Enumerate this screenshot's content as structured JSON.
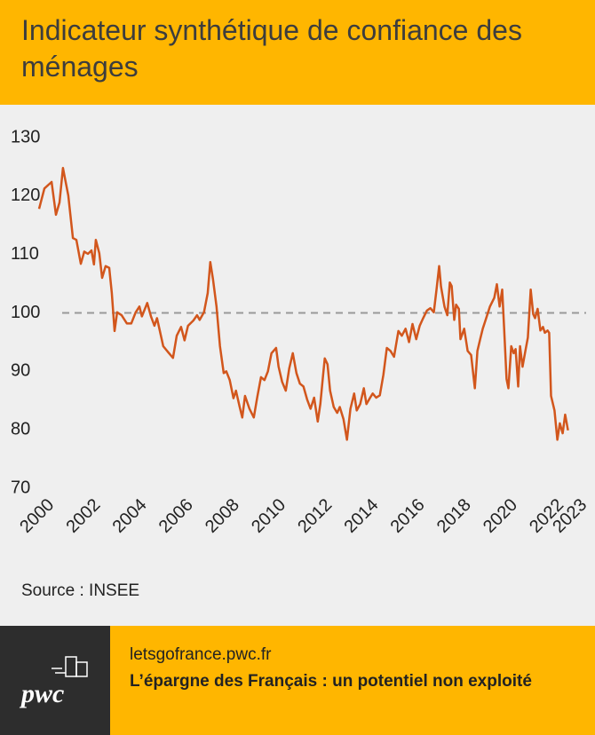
{
  "header": {
    "title": "Indicateur synthétique de confiance des ménages"
  },
  "chart_data": {
    "type": "line",
    "x": [
      2000.0,
      2000.23,
      2000.54,
      2000.73,
      2000.88,
      2001.03,
      2001.26,
      2001.46,
      2001.61,
      2001.8,
      2001.95,
      2002.11,
      2002.26,
      2002.37,
      2002.45,
      2002.6,
      2002.72,
      2002.87,
      2003.03,
      2003.14,
      2003.26,
      2003.37,
      2003.56,
      2003.79,
      2003.98,
      2004.17,
      2004.33,
      2004.44,
      2004.67,
      2004.83,
      2004.98,
      2005.09,
      2005.21,
      2005.36,
      2005.59,
      2005.78,
      2005.94,
      2006.13,
      2006.28,
      2006.43,
      2006.66,
      2006.82,
      2006.93,
      2007.12,
      2007.28,
      2007.39,
      2007.51,
      2007.66,
      2007.81,
      2007.97,
      2008.08,
      2008.23,
      2008.39,
      2008.5,
      2008.66,
      2008.77,
      2008.89,
      2009.08,
      2009.27,
      2009.42,
      2009.58,
      2009.73,
      2009.88,
      2010.03,
      2010.23,
      2010.34,
      2010.49,
      2010.65,
      2010.8,
      2010.95,
      2011.11,
      2011.26,
      2011.41,
      2011.57,
      2011.72,
      2011.87,
      2012.03,
      2012.14,
      2012.26,
      2012.33,
      2012.45,
      2012.56,
      2012.72,
      2012.87,
      2012.98,
      2013.14,
      2013.29,
      2013.44,
      2013.6,
      2013.71,
      2013.86,
      2014.02,
      2014.13,
      2014.29,
      2014.4,
      2014.55,
      2014.71,
      2014.86,
      2015.01,
      2015.17,
      2015.32,
      2015.51,
      2015.66,
      2015.82,
      2015.97,
      2016.12,
      2016.28,
      2016.43,
      2016.58,
      2016.74,
      2016.89,
      2017.04,
      2017.16,
      2017.27,
      2017.35,
      2017.5,
      2017.62,
      2017.73,
      2017.81,
      2017.92,
      2018.0,
      2018.12,
      2018.19,
      2018.35,
      2018.5,
      2018.65,
      2018.81,
      2018.92,
      2019.04,
      2019.15,
      2019.3,
      2019.46,
      2019.65,
      2019.76,
      2019.88,
      2019.99,
      2020.07,
      2020.18,
      2020.26,
      2020.38,
      2020.49,
      2020.57,
      2020.68,
      2020.76,
      2020.87,
      2020.99,
      2021.1,
      2021.22,
      2021.33,
      2021.41,
      2021.52,
      2021.64,
      2021.75,
      2021.83,
      2021.95,
      2022.02,
      2022.1,
      2022.25,
      2022.37,
      2022.48,
      2022.6,
      2022.71,
      2022.83
    ],
    "series": [
      {
        "color": "#d2561c",
        "values": [
          117.8,
          121.3,
          122.4,
          116.8,
          118.9,
          124.8,
          120.1,
          112.8,
          112.5,
          108.4,
          110.5,
          110.1,
          110.7,
          108.3,
          112.5,
          110.2,
          106.0,
          108.0,
          107.7,
          103.4,
          96.9,
          100.1,
          99.6,
          98.2,
          98.2,
          100.1,
          101.1,
          99.4,
          101.7,
          99.4,
          97.8,
          99.1,
          97.0,
          94.3,
          93.2,
          92.3,
          96.1,
          97.6,
          95.3,
          97.8,
          98.7,
          99.6,
          98.8,
          100.1,
          103.4,
          108.7,
          105.7,
          101.1,
          94.3,
          89.7,
          90.0,
          88.5,
          85.4,
          86.7,
          83.9,
          82.1,
          85.8,
          83.6,
          82.1,
          85.6,
          89.0,
          88.5,
          90.0,
          93.1,
          94.0,
          90.8,
          88.2,
          86.7,
          90.5,
          93.1,
          89.7,
          87.9,
          87.4,
          85.2,
          83.6,
          85.5,
          81.4,
          84.4,
          89.3,
          92.2,
          91.2,
          86.7,
          83.9,
          82.9,
          83.9,
          81.8,
          78.3,
          83.6,
          86.2,
          83.3,
          84.4,
          87.1,
          84.4,
          85.5,
          86.2,
          85.5,
          85.9,
          89.4,
          94.0,
          93.5,
          92.5,
          96.9,
          96.1,
          97.3,
          95.0,
          98.1,
          95.5,
          97.8,
          99.1,
          100.4,
          100.8,
          100.1,
          104.2,
          108.0,
          104.5,
          101.1,
          99.6,
          105.2,
          104.6,
          98.8,
          101.4,
          100.7,
          95.5,
          97.3,
          93.5,
          92.8,
          87.1,
          93.5,
          95.5,
          97.3,
          99.1,
          101.1,
          102.6,
          104.9,
          101.1,
          104.0,
          97.6,
          88.7,
          87.1,
          94.3,
          93.1,
          93.8,
          87.4,
          94.3,
          90.8,
          93.5,
          95.8,
          104.0,
          99.8,
          99.1,
          100.7,
          97.0,
          97.6,
          96.6,
          97.0,
          96.6,
          85.8,
          83.3,
          78.3,
          81.1,
          79.4,
          82.6,
          79.9
        ]
      }
    ],
    "xlim": [
      2000,
      2023
    ],
    "xticks": [
      2000,
      2002,
      2004,
      2006,
      2008,
      2010,
      2012,
      2014,
      2016,
      2018,
      2020,
      2022,
      2023
    ],
    "ylim": [
      70,
      130
    ],
    "yticks": [
      70,
      80,
      90,
      100,
      110,
      120,
      130
    ],
    "reference_line": 100,
    "grid": false
  },
  "source": "Source : INSEE",
  "footer": {
    "logo": "pwc",
    "url": "letsgofrance.pwc.fr",
    "headline": "L’épargne des Français : un potentiel non exploité"
  }
}
